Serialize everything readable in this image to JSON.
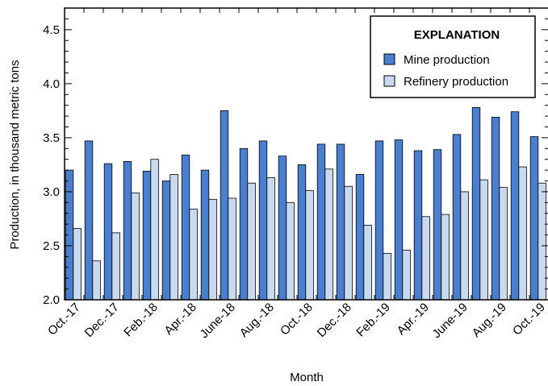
{
  "chart_data": {
    "type": "bar",
    "xlabel": "Month",
    "ylabel": "Production, in thousand metric tons",
    "ylim": [
      2.0,
      4.7
    ],
    "yticks": [
      "2.0",
      "2.5",
      "3.0",
      "3.5",
      "4.0",
      "4.5"
    ],
    "months": [
      "Oct.-17",
      "Nov.-17",
      "Dec.-17",
      "Jan.-18",
      "Feb.-18",
      "Mar.-18",
      "Apr.-18",
      "May-18",
      "June-18",
      "July-18",
      "Aug.-18",
      "Sep.-18",
      "Oct.-18",
      "Nov.-18",
      "Dec.-18",
      "Jan.-19",
      "Feb.-19",
      "Mar.-19",
      "Apr.-19",
      "May-19",
      "June-19",
      "July-19",
      "Aug.-19",
      "Sep.-19",
      "Oct.-19"
    ],
    "x_tick_labels": [
      {
        "index": 0,
        "text": "Oct.-17"
      },
      {
        "index": 2,
        "text": "Dec.-17"
      },
      {
        "index": 4,
        "text": "Feb.-18"
      },
      {
        "index": 6,
        "text": "Apr.-18"
      },
      {
        "index": 8,
        "text": "June-18"
      },
      {
        "index": 10,
        "text": "Aug.-18"
      },
      {
        "index": 12,
        "text": "Oct.-18"
      },
      {
        "index": 14,
        "text": "Dec.-18"
      },
      {
        "index": 16,
        "text": "Feb.-19"
      },
      {
        "index": 18,
        "text": "Apr.-19"
      },
      {
        "index": 20,
        "text": "June-19"
      },
      {
        "index": 22,
        "text": "Aug.-19"
      },
      {
        "index": 24,
        "text": "Oct.-19"
      }
    ],
    "series": [
      {
        "name": "Mine production",
        "color": "#4a7fd0",
        "values": [
          3.2,
          3.47,
          3.26,
          3.28,
          3.19,
          3.1,
          3.34,
          3.2,
          3.75,
          3.4,
          3.47,
          3.33,
          3.25,
          3.44,
          3.44,
          3.16,
          3.47,
          3.48,
          3.38,
          3.39,
          3.53,
          3.78,
          3.69,
          3.74,
          3.51
        ]
      },
      {
        "name": "Refinery production",
        "color": "#c9d9f0",
        "values": [
          2.66,
          2.36,
          2.62,
          2.99,
          3.3,
          3.16,
          2.84,
          2.93,
          2.94,
          3.08,
          3.13,
          2.9,
          3.01,
          3.21,
          3.05,
          2.69,
          2.43,
          2.46,
          2.77,
          2.79,
          3.0,
          3.11,
          3.04,
          3.23,
          3.08
        ]
      }
    ],
    "legend": {
      "title": "EXPLANATION",
      "position": "top-right"
    },
    "grid": false
  }
}
